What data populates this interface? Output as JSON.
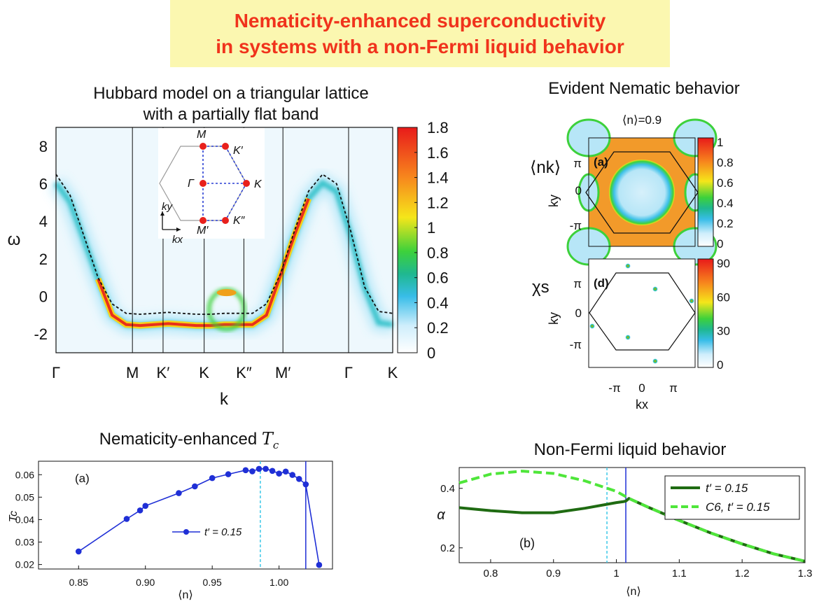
{
  "banner": {
    "line1": "Nematicity-enhanced superconductivity",
    "line2": "in systems with a non-Fermi liquid behavior"
  },
  "colors": {
    "banner_bg": "#fbf7b0",
    "banner_text": "#f0331c"
  },
  "sections": {
    "hubbard_title_1": "Hubbard model on a triangular lattice",
    "hubbard_title_2": "with a partially flat band",
    "nematic_title": "Evident Nematic behavior",
    "tc_title": "Nematicity-enhanced",
    "nfl_title": "Non-Fermi liquid behavior"
  },
  "chart_data": [
    {
      "id": "spectral",
      "type": "heatmap",
      "ylabel": "ω",
      "xlabel": "k",
      "ylim": [
        -3,
        9
      ],
      "yticks": [
        "8",
        "6",
        "4",
        "2",
        "0",
        "-2"
      ],
      "ytick_values": [
        8,
        6,
        4,
        2,
        0,
        -2
      ],
      "xticks": [
        "Γ",
        "M",
        "K′",
        "K",
        "K″",
        "M′",
        "Γ",
        "K"
      ],
      "xtick_positions": [
        0,
        0.227,
        0.318,
        0.44,
        0.558,
        0.674,
        0.869,
        1.0
      ],
      "colorbar": {
        "ticks": [
          "1.8",
          "1.6",
          "1.4",
          "1.2",
          "1",
          "0.8",
          "0.6",
          "0.4",
          "0.2",
          "0"
        ],
        "range": [
          0,
          1.8
        ]
      },
      "bare_band_omega": [
        6.5,
        5.4,
        3.2,
        1.0,
        -0.4,
        -0.9,
        -0.95,
        -0.9,
        -0.85,
        -0.9,
        -0.95,
        -0.95,
        -0.9,
        -0.9,
        -0.9,
        -0.4,
        1.2,
        3.5,
        5.6,
        6.5,
        6.0,
        3.5,
        0.5,
        -0.8,
        -0.9
      ],
      "inset": {
        "labels": [
          "M",
          "K′",
          "Γ",
          "K",
          "M′",
          "K″"
        ],
        "axis_x": "kx",
        "axis_y": "ky"
      }
    },
    {
      "id": "nk",
      "type": "heatmap",
      "title": "⟨n⟩=0.9",
      "quantity": "⟨nk⟩",
      "panel": "(a)",
      "ylabel": "ky",
      "yticks": [
        "π",
        "0",
        "-π"
      ],
      "colorbar": {
        "ticks": [
          "1",
          "0.8",
          "0.6",
          "0.4",
          "0.2",
          "0"
        ],
        "range": [
          0,
          1
        ]
      }
    },
    {
      "id": "chis",
      "type": "heatmap",
      "quantity": "χs",
      "panel": "(d)",
      "ylabel": "ky",
      "xlabel": "kx",
      "yticks": [
        "π",
        "0",
        "-π"
      ],
      "xticks": [
        "-π",
        "0",
        "π"
      ],
      "colorbar": {
        "ticks": [
          "90",
          "60",
          "30",
          "0"
        ],
        "range": [
          0,
          90
        ]
      }
    },
    {
      "id": "tc",
      "type": "line",
      "panel": "(a)",
      "ylabel": "Tc",
      "xlabel": "⟨n⟩",
      "xlim": [
        0.82,
        1.04
      ],
      "ylim": [
        0.018,
        0.066
      ],
      "xticks": [
        "0.85",
        "0.90",
        "0.95",
        "1.00"
      ],
      "xtick_values": [
        0.85,
        0.9,
        0.95,
        1.0
      ],
      "yticks": [
        "0.06",
        "0.05",
        "0.04",
        "0.03",
        "0.02"
      ],
      "ytick_values": [
        0.06,
        0.05,
        0.04,
        0.03,
        0.02
      ],
      "series": [
        {
          "name": "t′ = 0.15",
          "x": [
            0.85,
            0.886,
            0.896,
            0.9,
            0.925,
            0.937,
            0.95,
            0.962,
            0.975,
            0.98,
            0.985,
            0.99,
            0.995,
            1.0,
            1.005,
            1.01,
            1.015,
            1.02,
            1.03
          ],
          "y": [
            0.0258,
            0.0403,
            0.0441,
            0.0461,
            0.0518,
            0.0548,
            0.0585,
            0.0602,
            0.062,
            0.0615,
            0.0626,
            0.0626,
            0.0617,
            0.0605,
            0.0614,
            0.0599,
            0.0581,
            0.0557,
            0.0198
          ]
        }
      ],
      "vlines": [
        {
          "x": 0.986,
          "style": "dashed",
          "color": "#3cc8e8"
        },
        {
          "x": 1.02,
          "style": "solid",
          "color": "#1f2fd6"
        }
      ],
      "line_color": "#1f2fd6"
    },
    {
      "id": "alpha",
      "type": "line",
      "panel": "(b)",
      "ylabel": "α",
      "xlabel": "⟨n⟩",
      "xlim": [
        0.75,
        1.3
      ],
      "ylim": [
        0.15,
        0.47
      ],
      "xticks": [
        "0.8",
        "0.9",
        "1",
        "1.1",
        "1.2",
        "1.3"
      ],
      "xtick_values": [
        0.8,
        0.9,
        1.0,
        1.1,
        1.2,
        1.3
      ],
      "yticks": [
        "0.4",
        "0.2"
      ],
      "ytick_values": [
        0.4,
        0.2
      ],
      "series": [
        {
          "name": "t′ = 0.15",
          "color": "#1f6b12",
          "style": "solid",
          "x": [
            0.75,
            0.8,
            0.85,
            0.9,
            0.95,
            1.0,
            1.01,
            1.015,
            1.02,
            1.05,
            1.1,
            1.15,
            1.2,
            1.25,
            1.3
          ],
          "y": [
            0.335,
            0.325,
            0.318,
            0.318,
            0.333,
            0.352,
            0.355,
            0.357,
            0.366,
            0.337,
            0.292,
            0.25,
            0.213,
            0.18,
            0.155
          ]
        },
        {
          "name": "C6, t′ = 0.15",
          "color": "#4fe63a",
          "style": "dashed",
          "x": [
            0.75,
            0.8,
            0.85,
            0.9,
            0.95,
            1.0,
            1.02,
            1.05,
            1.1,
            1.15,
            1.2,
            1.25,
            1.3
          ],
          "y": [
            0.418,
            0.448,
            0.458,
            0.45,
            0.425,
            0.39,
            0.366,
            0.337,
            0.292,
            0.25,
            0.213,
            0.18,
            0.155
          ]
        }
      ],
      "vlines": [
        {
          "x": 0.985,
          "style": "dashed",
          "color": "#3cc8e8"
        },
        {
          "x": 1.015,
          "style": "solid",
          "color": "#1f2fd6"
        }
      ]
    }
  ]
}
